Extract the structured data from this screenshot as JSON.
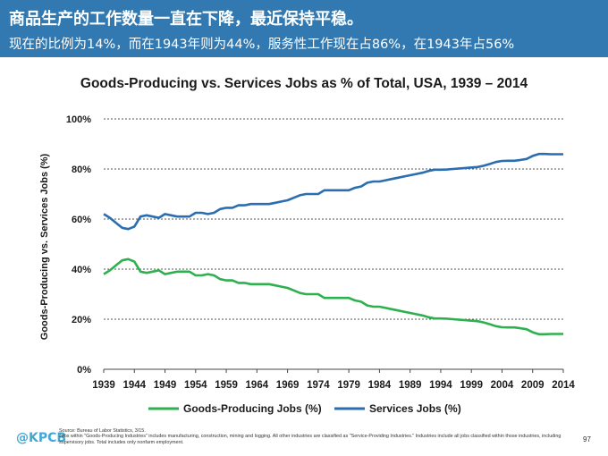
{
  "slide": {
    "title": "商品生产的工作数量一直在下降，最近保持平稳。",
    "subtitle": "现在的比例为14%，而在1943年则为44%，服务性工作现在占86%，在1943年占56%",
    "logo_at": "@",
    "logo_text": "KPCB",
    "source_line": "Source: Bureau of Labor Statistics, 3/15.",
    "note_line": "Jobs within \"Goods-Producing Industries\" includes manufacturing, construction, mining and logging. All other industries are classified as \"Service-Providing Industries.\" Industries include all jobs classified within those industries, including supervisory jobs. Total includes only nonfarm employment.",
    "page_number": "97",
    "header_color": "#3179b0"
  },
  "chart_data": {
    "type": "line",
    "title": "Goods-Producing vs. Services Jobs as % of Total, USA, 1939 – 2014",
    "xlabel": "",
    "ylabel": "Goods-Producing vs. Services Jobs (%)",
    "xlim": [
      1939,
      2014
    ],
    "ylim": [
      0,
      100
    ],
    "x_ticks": [
      1939,
      1944,
      1949,
      1954,
      1959,
      1964,
      1969,
      1974,
      1979,
      1984,
      1989,
      1994,
      1999,
      2004,
      2009,
      2014
    ],
    "y_ticks": [
      0,
      20,
      40,
      60,
      80,
      100
    ],
    "y_tick_labels": [
      "0%",
      "20%",
      "40%",
      "60%",
      "80%",
      "100%"
    ],
    "grid": "horizontal dashed",
    "legend_position": "bottom",
    "x": [
      1939,
      1940,
      1941,
      1942,
      1943,
      1944,
      1945,
      1946,
      1947,
      1948,
      1949,
      1950,
      1951,
      1952,
      1953,
      1954,
      1955,
      1956,
      1957,
      1958,
      1959,
      1960,
      1961,
      1962,
      1963,
      1964,
      1965,
      1966,
      1967,
      1968,
      1969,
      1970,
      1971,
      1972,
      1973,
      1974,
      1975,
      1976,
      1977,
      1978,
      1979,
      1980,
      1981,
      1982,
      1983,
      1984,
      1985,
      1986,
      1987,
      1988,
      1989,
      1990,
      1991,
      1992,
      1993,
      1994,
      1995,
      1996,
      1997,
      1998,
      1999,
      2000,
      2001,
      2002,
      2003,
      2004,
      2005,
      2006,
      2007,
      2008,
      2009,
      2010,
      2011,
      2012,
      2013,
      2014
    ],
    "series": [
      {
        "name": "Goods-Producing Jobs (%)",
        "color": "#2eb04f",
        "values": [
          38.0,
          39.5,
          41.5,
          43.5,
          44.0,
          43.0,
          39.0,
          38.5,
          39.0,
          39.5,
          38.0,
          38.5,
          39.0,
          39.0,
          39.0,
          37.5,
          37.5,
          38.0,
          37.5,
          36.0,
          35.5,
          35.5,
          34.5,
          34.5,
          34.0,
          34.0,
          34.0,
          34.0,
          33.5,
          33.0,
          32.5,
          31.5,
          30.5,
          30.0,
          30.0,
          30.0,
          28.5,
          28.5,
          28.5,
          28.5,
          28.5,
          27.5,
          27.0,
          25.5,
          25.0,
          25.0,
          24.5,
          24.0,
          23.5,
          23.0,
          22.5,
          22.0,
          21.5,
          20.8,
          20.3,
          20.3,
          20.2,
          20.0,
          19.8,
          19.6,
          19.4,
          19.2,
          18.7,
          18.0,
          17.2,
          16.8,
          16.7,
          16.7,
          16.4,
          16.0,
          14.8,
          14.0,
          14.0,
          14.1,
          14.1,
          14.1
        ]
      },
      {
        "name": "Services Jobs (%)",
        "color": "#2a6db0",
        "values": [
          62.0,
          60.5,
          58.5,
          56.5,
          56.0,
          57.0,
          61.0,
          61.5,
          61.0,
          60.5,
          62.0,
          61.5,
          61.0,
          61.0,
          61.0,
          62.5,
          62.5,
          62.0,
          62.5,
          64.0,
          64.5,
          64.5,
          65.5,
          65.5,
          66.0,
          66.0,
          66.0,
          66.0,
          66.5,
          67.0,
          67.5,
          68.5,
          69.5,
          70.0,
          70.0,
          70.0,
          71.5,
          71.5,
          71.5,
          71.5,
          71.5,
          72.5,
          73.0,
          74.5,
          75.0,
          75.0,
          75.5,
          76.0,
          76.5,
          77.0,
          77.5,
          78.0,
          78.5,
          79.2,
          79.7,
          79.7,
          79.8,
          80.0,
          80.2,
          80.4,
          80.6,
          80.8,
          81.3,
          82.0,
          82.8,
          83.2,
          83.3,
          83.3,
          83.6,
          84.0,
          85.2,
          86.0,
          86.0,
          85.9,
          85.9,
          85.9
        ]
      }
    ]
  }
}
